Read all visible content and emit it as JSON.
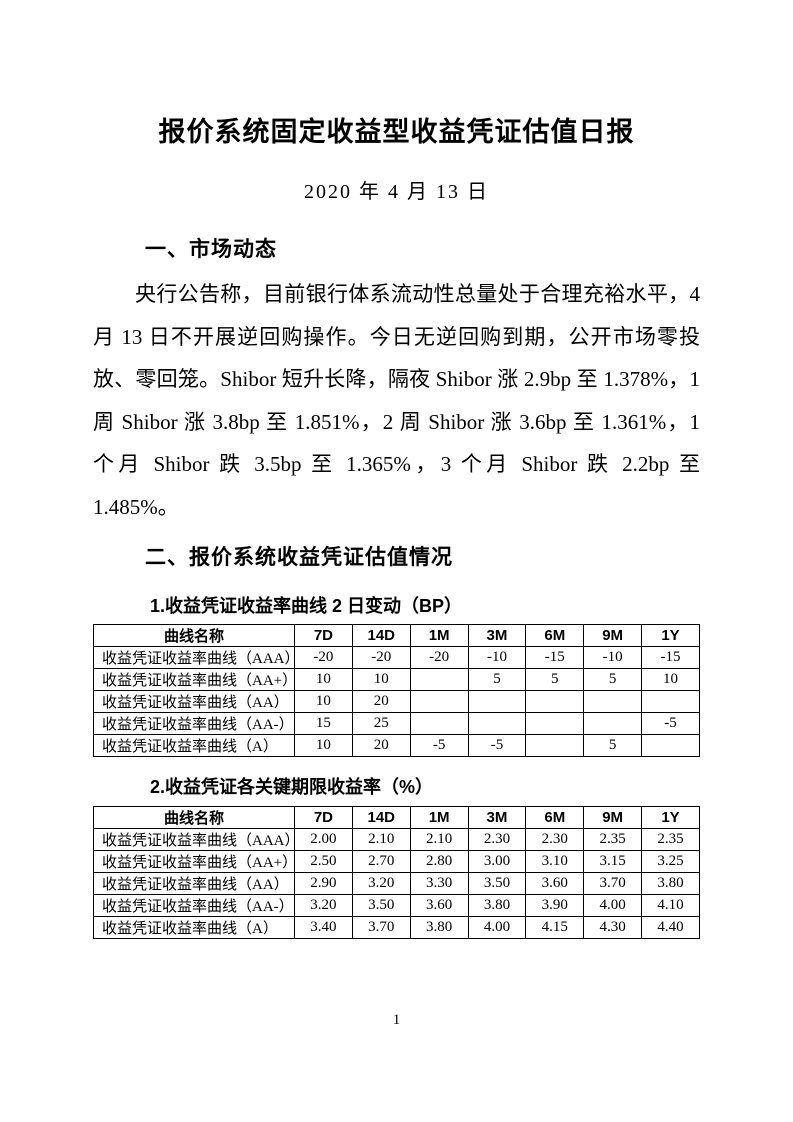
{
  "page": {
    "title": "报价系统固定收益型收益凭证估值日报",
    "date": "2020 年 4 月 13 日",
    "page_number": "1"
  },
  "sections": {
    "market": {
      "heading": "一、市场动态",
      "paragraph": "央行公告称，目前银行体系流动性总量处于合理充裕水平，4 月 13 日不开展逆回购操作。今日无逆回购到期，公开市场零投放、零回笼。Shibor 短升长降，隔夜 Shibor 涨 2.9bp 至 1.378%，1 周 Shibor 涨 3.8bp 至 1.851%，2 周 Shibor 涨 3.6bp 至 1.361%，1 个月 Shibor 跌 3.5bp 至 1.365%，3 个月 Shibor 跌 2.2bp 至 1.485%。"
    },
    "valuation": {
      "heading": "二、报价系统收益凭证估值情况",
      "table1": {
        "caption": "1.收益凭证收益率曲线 2 日变动（BP）",
        "headers": [
          "曲线名称",
          "7D",
          "14D",
          "1M",
          "3M",
          "6M",
          "9M",
          "1Y"
        ],
        "rows": [
          [
            "收益凭证收益率曲线（AAA）",
            "-20",
            "-20",
            "-20",
            "-10",
            "-15",
            "-10",
            "-15"
          ],
          [
            "收益凭证收益率曲线（AA+）",
            "10",
            "10",
            "",
            "5",
            "5",
            "5",
            "10"
          ],
          [
            "收益凭证收益率曲线（AA）",
            "10",
            "20",
            "",
            "",
            "",
            "",
            ""
          ],
          [
            "收益凭证收益率曲线（AA-）",
            "15",
            "25",
            "",
            "",
            "",
            "",
            "-5"
          ],
          [
            "收益凭证收益率曲线（A）",
            "10",
            "20",
            "-5",
            "-5",
            "",
            "5",
            ""
          ]
        ]
      },
      "table2": {
        "caption": "2.收益凭证各关键期限收益率（%）",
        "headers": [
          "曲线名称",
          "7D",
          "14D",
          "1M",
          "3M",
          "6M",
          "9M",
          "1Y"
        ],
        "rows": [
          [
            "收益凭证收益率曲线（AAA）",
            "2.00",
            "2.10",
            "2.10",
            "2.30",
            "2.30",
            "2.35",
            "2.35"
          ],
          [
            "收益凭证收益率曲线（AA+）",
            "2.50",
            "2.70",
            "2.80",
            "3.00",
            "3.10",
            "3.15",
            "3.25"
          ],
          [
            "收益凭证收益率曲线（AA）",
            "2.90",
            "3.20",
            "3.30",
            "3.50",
            "3.60",
            "3.70",
            "3.80"
          ],
          [
            "收益凭证收益率曲线（AA-）",
            "3.20",
            "3.50",
            "3.60",
            "3.80",
            "3.90",
            "4.00",
            "4.10"
          ],
          [
            "收益凭证收益率曲线（A）",
            "3.40",
            "3.70",
            "3.80",
            "4.00",
            "4.15",
            "4.30",
            "4.40"
          ]
        ]
      }
    }
  },
  "colors": {
    "page_background": "#ffffff",
    "text": "#000000",
    "table_border": "#000000"
  }
}
